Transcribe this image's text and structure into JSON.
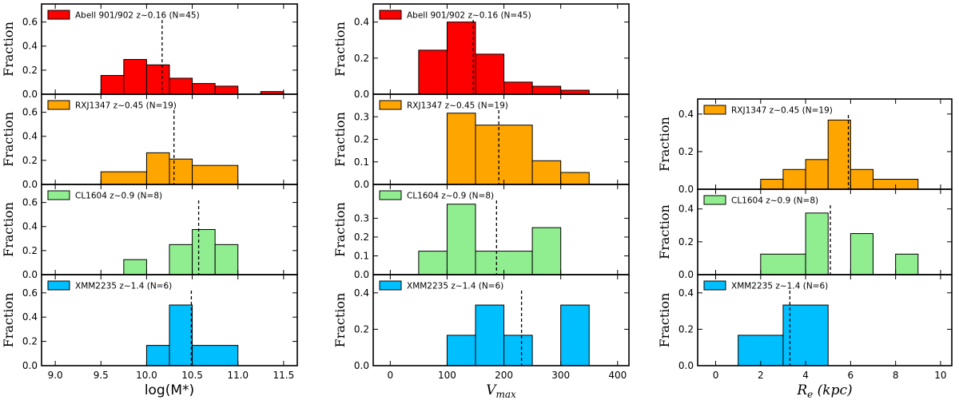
{
  "chart_data": [
    {
      "type": "bar",
      "xlabel": "log(M*)",
      "xlim": [
        8.85,
        11.65
      ],
      "xticks": [
        9.0,
        9.5,
        10.0,
        10.5,
        11.0,
        11.5
      ],
      "xticklabels": [
        "9.0",
        "9.5",
        "10.0",
        "10.5",
        "11.0",
        "11.5"
      ],
      "ylabel": "Fraction",
      "panels": [
        {
          "label": "Abell 901/902 z~0.16 (N=45)",
          "color": "#ff0000",
          "ylim": [
            0,
            0.75
          ],
          "yticks": [
            0.0,
            0.2,
            0.4,
            0.6
          ],
          "yticklabels": [
            "0.0",
            "0.2",
            "0.4",
            "0.6"
          ],
          "bins": [
            [
              9.5,
              9.75,
              0.156
            ],
            [
              9.75,
              10.0,
              0.289
            ],
            [
              10.0,
              10.25,
              0.244
            ],
            [
              10.25,
              10.5,
              0.133
            ],
            [
              10.5,
              10.75,
              0.089
            ],
            [
              10.75,
              11.0,
              0.067
            ],
            [
              11.25,
              11.5,
              0.022
            ]
          ],
          "median": 10.17
        },
        {
          "label": "RXJ1347 z~0.45 (N=19)",
          "color": "#ffa500",
          "ylim": [
            0,
            0.75
          ],
          "yticks": [
            0.0,
            0.2,
            0.4,
            0.6
          ],
          "yticklabels": [
            "0.0",
            "0.2",
            "0.4",
            "0.6"
          ],
          "bins": [
            [
              9.5,
              10.0,
              0.105
            ],
            [
              10.0,
              10.25,
              0.263
            ],
            [
              10.25,
              10.5,
              0.211
            ],
            [
              10.5,
              11.0,
              0.158
            ]
          ],
          "median": 10.3
        },
        {
          "label": "CL1604 z~0.9 (N=8)",
          "color": "#90ee90",
          "ylim": [
            0,
            0.75
          ],
          "yticks": [
            0.0,
            0.2,
            0.4,
            0.6
          ],
          "yticklabels": [
            "0.0",
            "0.2",
            "0.4",
            "0.6"
          ],
          "bins": [
            [
              9.75,
              10.0,
              0.125
            ],
            [
              10.25,
              10.5,
              0.25
            ],
            [
              10.5,
              10.75,
              0.375
            ],
            [
              10.75,
              11.0,
              0.25
            ]
          ],
          "median": 10.57
        },
        {
          "label": "XMM2235 z~1.4 (N=6)",
          "color": "#00bfff",
          "ylim": [
            0,
            0.75
          ],
          "yticks": [
            0.0,
            0.2,
            0.4,
            0.6
          ],
          "yticklabels": [
            "0.0",
            "0.2",
            "0.4",
            "0.6"
          ],
          "bins": [
            [
              10.0,
              10.25,
              0.167
            ],
            [
              10.25,
              10.5,
              0.5
            ],
            [
              10.5,
              11.0,
              0.167
            ]
          ],
          "median": 10.49
        }
      ]
    },
    {
      "type": "bar",
      "xlabel": "V_max",
      "xlim": [
        -30,
        420
      ],
      "xticks": [
        0,
        100,
        200,
        300,
        400
      ],
      "xticklabels": [
        "0",
        "100",
        "200",
        "300",
        "400"
      ],
      "ylabel": "Fraction",
      "panels": [
        {
          "label": "Abell 901/902 z~0.16 (N=45)",
          "color": "#ff0000",
          "ylim": [
            0,
            0.5
          ],
          "yticks": [
            0.0,
            0.2,
            0.4
          ],
          "yticklabels": [
            "0.0",
            "0.2",
            "0.4"
          ],
          "bins": [
            [
              50,
              100,
              0.244
            ],
            [
              100,
              150,
              0.4
            ],
            [
              150,
              200,
              0.222
            ],
            [
              200,
              250,
              0.067
            ],
            [
              250,
              300,
              0.044
            ],
            [
              300,
              350,
              0.022
            ]
          ],
          "median": 146
        },
        {
          "label": "RXJ1347 z~0.45 (N=19)",
          "color": "#ffa500",
          "ylim": [
            0,
            0.4
          ],
          "yticks": [
            0.0,
            0.1,
            0.2,
            0.3
          ],
          "yticklabels": [
            "0.0",
            "0.1",
            "0.2",
            "0.3"
          ],
          "bins": [
            [
              100,
              150,
              0.316
            ],
            [
              150,
              250,
              0.263
            ],
            [
              250,
              300,
              0.105
            ],
            [
              300,
              350,
              0.053
            ]
          ],
          "median": 191
        },
        {
          "label": "CL1604 z~0.9 (N=8)",
          "color": "#90ee90",
          "ylim": [
            0,
            0.48
          ],
          "yticks": [
            0.0,
            0.1,
            0.2,
            0.3
          ],
          "yticklabels": [
            "0.0",
            "0.1",
            "0.2",
            "0.3"
          ],
          "bins": [
            [
              50,
              100,
              0.125
            ],
            [
              100,
              150,
              0.375
            ],
            [
              150,
              250,
              0.125
            ],
            [
              250,
              300,
              0.25
            ]
          ],
          "median": 187
        },
        {
          "label": "XMM2235 z~1.4 (N=6)",
          "color": "#00bfff",
          "ylim": [
            0,
            0.5
          ],
          "yticks": [
            0.0,
            0.2,
            0.4
          ],
          "yticklabels": [
            "0.0",
            "0.2",
            "0.4"
          ],
          "bins": [
            [
              100,
              150,
              0.167
            ],
            [
              150,
              200,
              0.333
            ],
            [
              200,
              250,
              0.167
            ],
            [
              300,
              350,
              0.333
            ]
          ],
          "median": 231
        }
      ]
    },
    {
      "type": "bar",
      "xlabel": "R_e (kpc)",
      "xlim": [
        -0.8,
        10.5
      ],
      "xticks": [
        0,
        2,
        4,
        6,
        8,
        10
      ],
      "xticklabels": [
        "0",
        "2",
        "4",
        "6",
        "8",
        "10"
      ],
      "ylabel": "Fraction",
      "panels": [
        {
          "label": "RXJ1347 z~0.45 (N=19)",
          "color": "#ffa500",
          "ylim": [
            0,
            0.48
          ],
          "yticks": [
            0.0,
            0.2,
            0.4
          ],
          "yticklabels": [
            "0.0",
            "0.2",
            "0.4"
          ],
          "bins": [
            [
              2,
              3,
              0.053
            ],
            [
              3,
              4,
              0.105
            ],
            [
              4,
              5,
              0.158
            ],
            [
              5,
              6,
              0.368
            ],
            [
              6,
              7,
              0.105
            ],
            [
              7,
              9,
              0.053
            ]
          ],
          "median": 5.9
        },
        {
          "label": "CL1604 z~0.9 (N=8)",
          "color": "#90ee90",
          "ylim": [
            0,
            0.52
          ],
          "yticks": [
            0.0,
            0.2,
            0.4
          ],
          "yticklabels": [
            "0.0",
            "0.2",
            "0.4"
          ],
          "bins": [
            [
              2,
              4,
              0.125
            ],
            [
              4,
              5,
              0.375
            ],
            [
              6,
              7,
              0.25
            ],
            [
              8,
              9,
              0.125
            ]
          ],
          "median": 5.1
        },
        {
          "label": "XMM2235 z~1.4 (N=6)",
          "color": "#00bfff",
          "ylim": [
            0,
            0.5
          ],
          "yticks": [
            0.0,
            0.2,
            0.4
          ],
          "yticklabels": [
            "0.0",
            "0.2",
            "0.4"
          ],
          "bins": [
            [
              1,
              3,
              0.167
            ],
            [
              3,
              5,
              0.333
            ]
          ],
          "median": 3.3
        }
      ]
    }
  ]
}
